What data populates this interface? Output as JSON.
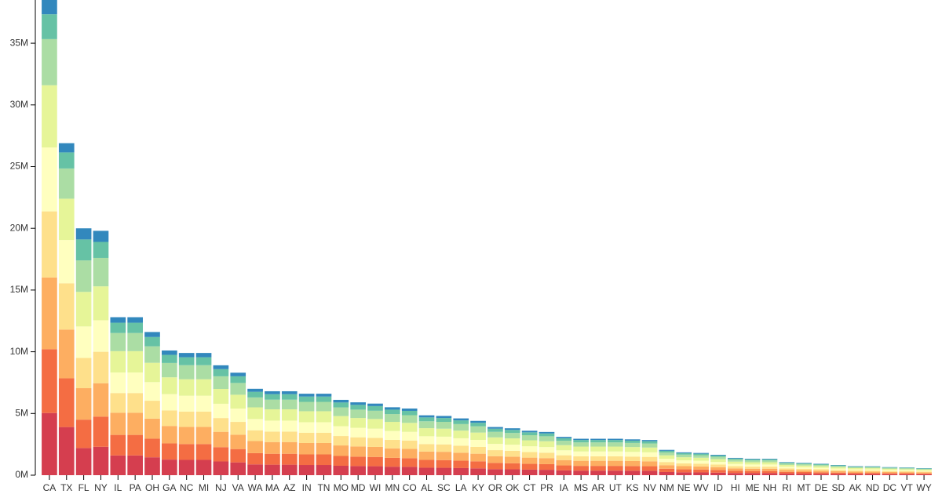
{
  "chart_data": {
    "type": "stacked_bar",
    "categories": [
      "CA",
      "TX",
      "FL",
      "NY",
      "IL",
      "PA",
      "OH",
      "GA",
      "NC",
      "MI",
      "NJ",
      "VA",
      "WA",
      "MA",
      "AZ",
      "IN",
      "TN",
      "MO",
      "MD",
      "WI",
      "MN",
      "CO",
      "AL",
      "SC",
      "LA",
      "KY",
      "OR",
      "OK",
      "CT",
      "PR",
      "IA",
      "MS",
      "AR",
      "UT",
      "KS",
      "NV",
      "NM",
      "NE",
      "WV",
      "ID",
      "HI",
      "ME",
      "NH",
      "RI",
      "MT",
      "DE",
      "SD",
      "AK",
      "ND",
      "DC",
      "VT",
      "WY"
    ],
    "series": [
      {
        "color": "#d53e4f",
        "values": [
          5038433,
          3900000,
          2200000,
          2300000,
          1600000,
          1600000,
          1450000,
          1263000,
          1238000,
          1238000,
          1113000,
          1038000,
          875000,
          850000,
          850000,
          825000,
          825000,
          763000,
          738000,
          725000,
          688000,
          675000,
          606000,
          600000,
          575000,
          550000,
          488000,
          475000,
          450000,
          438000,
          388000,
          369000,
          369000,
          369000,
          363000,
          356000,
          256000,
          231000,
          225000,
          206000,
          175000,
          166000,
          166000,
          131000,
          125000,
          115000,
          103000,
          91000,
          90000,
          81000,
          78000,
          71000
        ]
      },
      {
        "color": "#f46d43",
        "values": [
          5170341,
          3950000,
          2300000,
          2450000,
          1664000,
          1664000,
          1508000,
          1313000,
          1287000,
          1287000,
          1157000,
          1079000,
          910000,
          884000,
          884000,
          858000,
          858000,
          793000,
          767000,
          754000,
          715000,
          702000,
          631000,
          624000,
          598000,
          572000,
          507000,
          494000,
          468000,
          455000,
          403000,
          384000,
          384000,
          384000,
          377000,
          371000,
          267000,
          241000,
          234000,
          215000,
          182000,
          173000,
          173000,
          137000,
          130000,
          120000,
          107000,
          95000,
          94000,
          85000,
          81000,
          74000
        ]
      },
      {
        "color": "#fdae61",
        "values": [
          5809455,
          3950000,
          2550000,
          2700000,
          1792000,
          1792000,
          1624000,
          1414000,
          1386000,
          1386000,
          1246000,
          1162000,
          980000,
          952000,
          952000,
          924000,
          924000,
          854000,
          826000,
          812000,
          770000,
          756000,
          679000,
          672000,
          644000,
          616000,
          546000,
          532000,
          504000,
          490000,
          434000,
          413000,
          413000,
          413000,
          406000,
          399000,
          287000,
          259000,
          252000,
          231000,
          196000,
          186000,
          186000,
          147000,
          140000,
          129000,
          115000,
          102000,
          101000,
          91000,
          87000,
          80000
        ]
      },
      {
        "color": "#fee08b",
        "values": [
          5354112,
          3750000,
          2450000,
          2550000,
          1600000,
          1600000,
          1450000,
          1263000,
          1238000,
          1238000,
          1113000,
          1038000,
          875000,
          850000,
          850000,
          825000,
          825000,
          763000,
          738000,
          725000,
          688000,
          675000,
          606000,
          600000,
          575000,
          550000,
          488000,
          475000,
          450000,
          438000,
          388000,
          369000,
          369000,
          369000,
          363000,
          356000,
          256000,
          231000,
          225000,
          206000,
          175000,
          166000,
          166000,
          131000,
          125000,
          115000,
          103000,
          91000,
          90000,
          81000,
          78000,
          71000
        ]
      },
      {
        "color": "#ffffbf",
        "values": [
          5179258,
          3500000,
          2550000,
          2550000,
          1664000,
          1664000,
          1508000,
          1313000,
          1287000,
          1287000,
          1157000,
          1079000,
          910000,
          884000,
          884000,
          858000,
          858000,
          793000,
          767000,
          754000,
          715000,
          702000,
          631000,
          624000,
          598000,
          572000,
          507000,
          494000,
          468000,
          455000,
          403000,
          384000,
          384000,
          384000,
          377000,
          371000,
          267000,
          241000,
          234000,
          215000,
          182000,
          173000,
          173000,
          137000,
          130000,
          120000,
          107000,
          95000,
          94000,
          85000,
          81000,
          74000
        ]
      },
      {
        "color": "#e6f598",
        "values": [
          5042094,
          3350000,
          2800000,
          2750000,
          1728000,
          1728000,
          1566000,
          1364000,
          1337000,
          1337000,
          1202000,
          1121000,
          945000,
          918000,
          918000,
          891000,
          891000,
          824000,
          797000,
          783000,
          743000,
          729000,
          655000,
          648000,
          621000,
          594000,
          527000,
          513000,
          486000,
          473000,
          419000,
          398000,
          398000,
          398000,
          392000,
          385000,
          277000,
          250000,
          243000,
          223000,
          189000,
          180000,
          180000,
          142000,
          135000,
          124000,
          111000,
          99000,
          97000,
          88000,
          84000,
          77000
        ]
      },
      {
        "color": "#abdda4",
        "values": [
          3737461,
          2450000,
          2550000,
          2300000,
          1472000,
          1472000,
          1334000,
          1162000,
          1139000,
          1139000,
          1024000,
          955000,
          805000,
          782000,
          782000,
          759000,
          759000,
          702000,
          679000,
          667000,
          633000,
          621000,
          558000,
          552000,
          529000,
          506000,
          449000,
          437000,
          414000,
          403000,
          357000,
          339000,
          339000,
          339000,
          334000,
          328000,
          236000,
          213000,
          207000,
          190000,
          161000,
          153000,
          153000,
          121000,
          115000,
          106000,
          94000,
          84000,
          83000,
          75000,
          71000,
          66000
        ]
      },
      {
        "color": "#66c2a5",
        "values": [
          2011678,
          1300000,
          1700000,
          1300000,
          832000,
          832000,
          754000,
          657000,
          644000,
          644000,
          579000,
          540000,
          455000,
          442000,
          442000,
          429000,
          429000,
          397000,
          384000,
          377000,
          358000,
          351000,
          315000,
          312000,
          299000,
          286000,
          254000,
          247000,
          234000,
          228000,
          202000,
          192000,
          192000,
          192000,
          189000,
          185000,
          133000,
          120000,
          117000,
          107000,
          91000,
          86000,
          86000,
          68000,
          65000,
          60000,
          53000,
          47000,
          47000,
          42000,
          40000,
          37000
        ]
      },
      {
        "color": "#3288bd",
        "values": [
          1311374,
          750000,
          900000,
          900000,
          448000,
          448000,
          406000,
          354000,
          347000,
          347000,
          312000,
          291000,
          245000,
          238000,
          238000,
          231000,
          231000,
          214000,
          207000,
          203000,
          193000,
          189000,
          170000,
          168000,
          161000,
          154000,
          137000,
          133000,
          126000,
          123000,
          109000,
          103000,
          103000,
          103000,
          102000,
          100000,
          72000,
          65000,
          63000,
          58000,
          49000,
          47000,
          47000,
          37000,
          35000,
          32000,
          29000,
          26000,
          25000,
          23000,
          22000,
          20000
        ]
      }
    ],
    "ylim": [
      0,
      38500000
    ],
    "yticks": [
      {
        "value": 0,
        "label": "0M"
      },
      {
        "value": 5000000,
        "label": "5M"
      },
      {
        "value": 10000000,
        "label": "10M"
      },
      {
        "value": 15000000,
        "label": "15M"
      },
      {
        "value": 20000000,
        "label": "20M"
      },
      {
        "value": 25000000,
        "label": "25M"
      },
      {
        "value": 30000000,
        "label": "30M"
      },
      {
        "value": 35000000,
        "label": "35M"
      }
    ]
  }
}
